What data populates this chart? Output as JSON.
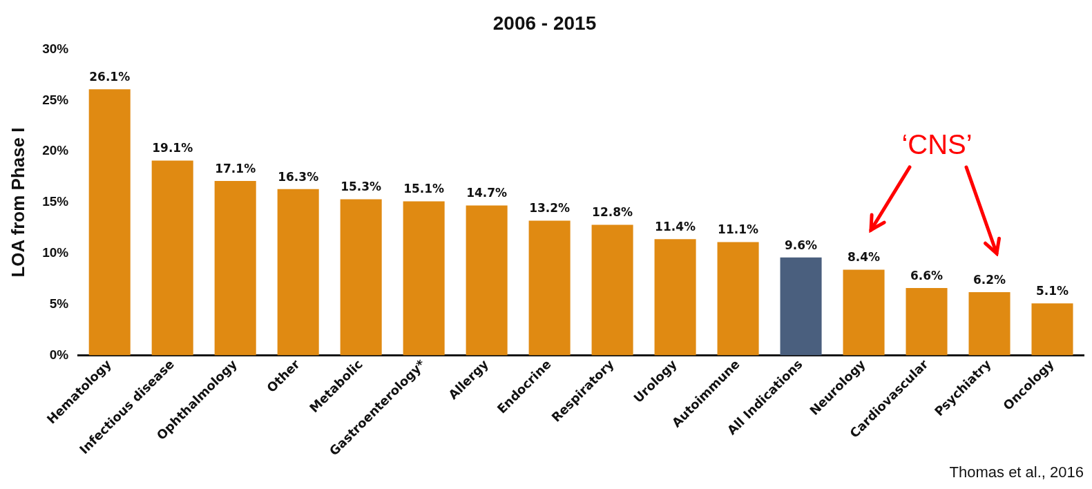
{
  "chart_data": {
    "type": "bar",
    "title": "2006 - 2015",
    "ylabel": "LOA from Phase I",
    "categories": [
      "Hematology",
      "Infectious disease",
      "Ophthalmology",
      "Other",
      "Metabolic",
      "Gastroenterology*",
      "Allergy",
      "Endocrine",
      "Respiratory",
      "Urology",
      "Autoimmune",
      "All Indications",
      "Neurology",
      "Cardiovascular",
      "Psychiatry",
      "Oncology"
    ],
    "values": [
      26.1,
      19.1,
      17.1,
      16.3,
      15.3,
      15.1,
      14.7,
      13.2,
      12.8,
      11.4,
      11.1,
      9.6,
      8.4,
      6.6,
      6.2,
      5.1
    ],
    "colors": [
      "#e08a12",
      "#e08a12",
      "#e08a12",
      "#e08a12",
      "#e08a12",
      "#e08a12",
      "#e08a12",
      "#e08a12",
      "#e08a12",
      "#e08a12",
      "#e08a12",
      "#4a5f7e",
      "#e08a12",
      "#e08a12",
      "#e08a12",
      "#e08a12"
    ],
    "value_labels": [
      "26.1%",
      "19.1%",
      "17.1%",
      "16.3%",
      "15.3%",
      "15.1%",
      "14.7%",
      "13.2%",
      "12.8%",
      "11.4%",
      "11.1%",
      "9.6%",
      "8.4%",
      "6.6%",
      "6.2%",
      "5.1%"
    ],
    "ylim": [
      0,
      30
    ],
    "yticks": [
      {
        "value": 0,
        "label": "0%"
      },
      {
        "value": 5,
        "label": "5%"
      },
      {
        "value": 10,
        "label": "10%"
      },
      {
        "value": 15,
        "label": "15%"
      },
      {
        "value": 20,
        "label": "20%"
      },
      {
        "value": 25,
        "label": "25%"
      },
      {
        "value": 30,
        "label": "30%"
      }
    ],
    "grid": false,
    "legend": false,
    "annotations": [
      "‘CNS’",
      "Thomas et al., 2016"
    ]
  }
}
